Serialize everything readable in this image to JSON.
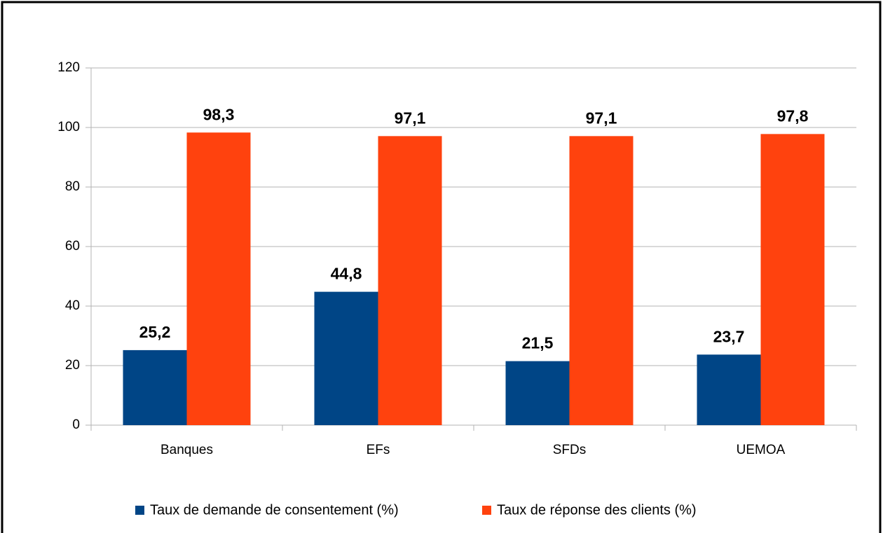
{
  "chart_data": {
    "type": "bar",
    "categories": [
      "Banques",
      "EFs",
      "SFDs",
      "UEMOA"
    ],
    "series": [
      {
        "name": "Taux de demande de consentement (%)",
        "color": "#004586",
        "values": [
          25.2,
          44.8,
          21.5,
          23.7
        ],
        "value_labels": [
          "25,2",
          "44,8",
          "21,5",
          "23,7"
        ]
      },
      {
        "name": "Taux de réponse des clients (%)",
        "color": "#ff420e",
        "values": [
          98.3,
          97.1,
          97.1,
          97.8
        ],
        "value_labels": [
          "98,3",
          "97,1",
          "97,1",
          "97,8"
        ]
      }
    ],
    "ylim": [
      0,
      120
    ],
    "yticks": [
      0,
      20,
      40,
      60,
      80,
      100,
      120
    ],
    "grid": true,
    "legend": "bottom"
  }
}
